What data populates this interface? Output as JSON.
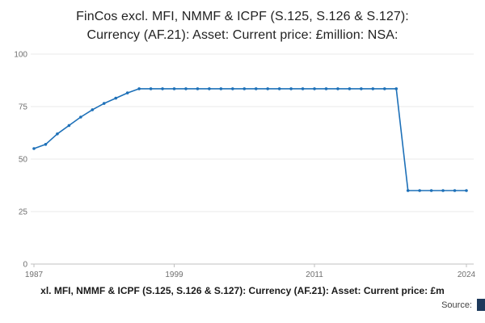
{
  "title": {
    "line1": "FinCos excl. MFI, NMMF & ICPF (S.125, S.126 & S.127):",
    "line2": "Currency (AF.21): Asset: Current price: £million: NSA:"
  },
  "legend": "xl. MFI, NMMF & ICPF (S.125, S.126 & S.127): Currency (AF.21): Asset: Current price: £m",
  "source_label": "Source:",
  "colors": {
    "line": "#1d70b8",
    "grid": "#e9e9e9",
    "axis": "#c0c0c0",
    "tick_label": "#6f6f6f",
    "title": "#222222",
    "logo": "#1e3a5c"
  },
  "chart_data": {
    "type": "line",
    "title": "FinCos excl. MFI, NMMF & ICPF (S.125, S.126 & S.127): Currency (AF.21): Asset: Current price: £million: NSA:",
    "x": [
      1987,
      1988,
      1989,
      1990,
      1991,
      1992,
      1993,
      1994,
      1995,
      1996,
      1997,
      1998,
      1999,
      2000,
      2001,
      2002,
      2003,
      2004,
      2005,
      2006,
      2007,
      2008,
      2009,
      2010,
      2011,
      2012,
      2013,
      2014,
      2015,
      2016,
      2017,
      2018,
      2019,
      2020,
      2021,
      2022,
      2023,
      2024
    ],
    "series": [
      {
        "name": "FinCos excl. MFI, NMMF & ICPF (S.125, S.126 & S.127): Currency (AF.21): Asset: Current price: £million: NSA:",
        "values": [
          55,
          57,
          62,
          66,
          70,
          73.5,
          76.5,
          79,
          81.5,
          83.5,
          83.5,
          83.5,
          83.5,
          83.5,
          83.5,
          83.5,
          83.5,
          83.5,
          83.5,
          83.5,
          83.5,
          83.5,
          83.5,
          83.5,
          83.5,
          83.5,
          83.5,
          83.5,
          83.5,
          83.5,
          83.5,
          83.5,
          35,
          35,
          35,
          35,
          35,
          35
        ]
      }
    ],
    "xlim": [
      1987,
      2024
    ],
    "ylim": [
      0,
      100
    ],
    "yticks": [
      0,
      25,
      50,
      75,
      100
    ],
    "xticks": [
      1987,
      1999,
      2011,
      2024
    ],
    "grid": true,
    "legend_position": "bottom",
    "marker": "circle",
    "xlabel": "",
    "ylabel": ""
  }
}
